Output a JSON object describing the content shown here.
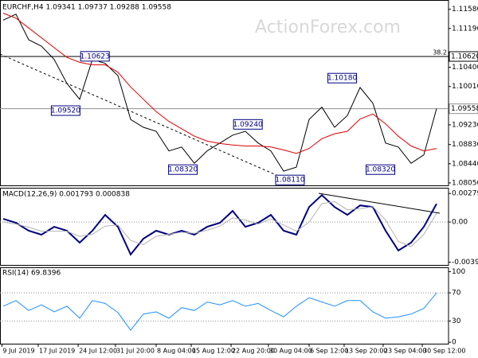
{
  "chart_data": [
    {
      "type": "line",
      "title": "EURCHF,H4  1.09341 1.09737 1.09288 1.09558",
      "watermark": "ActionForex.com",
      "ylim": [
        1.08,
        1.1172
      ],
      "yticks": [
        {
          "value": 1.1158,
          "label": "1.11580"
        },
        {
          "value": 1.1119,
          "label": "1.11190"
        },
        {
          "value": 1.104,
          "label": "1.10400"
        },
        {
          "value": 1.1001,
          "label": "1.10010"
        },
        {
          "value": 1.0923,
          "label": "1.09230"
        },
        {
          "value": 1.0883,
          "label": "1.08830"
        },
        {
          "value": 1.0844,
          "label": "1.08440"
        },
        {
          "value": 1.0805,
          "label": "1.08050"
        }
      ],
      "levels": [
        {
          "value": 1.1062,
          "label": "1.10620",
          "color": "#000000"
        },
        {
          "value": 1.09558,
          "label": "1.09558",
          "color": "#909090"
        }
      ],
      "fib_label": "38.2",
      "annotations": [
        {
          "value": 1.0952,
          "label": "1.09520",
          "x": 4.9
        },
        {
          "value": 1.10623,
          "label": "1.10623",
          "x": 7.2
        },
        {
          "value": 1.0924,
          "label": "1.09240",
          "x": 19.2
        },
        {
          "value": 1.1018,
          "label": "1.10180",
          "x": 26.6
        },
        {
          "value": 1.0832,
          "label": "1.08320",
          "x": 14.1
        },
        {
          "value": 1.0811,
          "label": "1.08110",
          "x": 22.5
        },
        {
          "value": 1.0832,
          "label": "1.08320",
          "x": 29.6
        }
      ],
      "series": [
        {
          "color": "#000000",
          "values": [
            1.1136,
            1.1148,
            1.1096,
            1.1083,
            1.1056,
            1.1007,
            1.0975,
            1.1056,
            1.1048,
            1.1023,
            1.0934,
            1.0918,
            1.091,
            1.087,
            1.0878,
            1.0845,
            1.087,
            1.0886,
            1.0902,
            1.091,
            1.0886,
            1.087,
            1.0829,
            1.0837,
            1.0934,
            1.0959,
            1.0918,
            1.0942,
            1.0999,
            1.0967,
            1.0886,
            1.0878,
            1.0845,
            1.0862,
            1.0956
          ]
        },
        {
          "color": "#e00000",
          "values": [
            1.115,
            1.114,
            1.112,
            1.11,
            1.108,
            1.106,
            1.105,
            1.1045,
            1.1045,
            1.103,
            1.1,
            1.0975,
            1.095,
            1.093,
            1.0915,
            1.09,
            1.089,
            1.0885,
            1.0882,
            1.088,
            1.088,
            1.0878,
            1.0872,
            1.0865,
            1.0875,
            1.0895,
            1.0905,
            1.091,
            1.0935,
            1.0945,
            1.0925,
            1.09,
            1.088,
            1.087,
            1.0875
          ]
        }
      ]
    },
    {
      "type": "line",
      "title": "MACD(12,26,9) 0.001793 0.000838",
      "ylim": [
        -0.0042,
        0.0032
      ],
      "yticks": [
        {
          "value": 0.002793,
          "label": "0.002793"
        },
        {
          "value": 0,
          "label": "0.00"
        },
        {
          "value": -0.003938,
          "label": "-0.003938"
        }
      ],
      "levels": [
        {
          "value": 0,
          "color": "#909090"
        }
      ],
      "series": [
        {
          "color": "#000080",
          "values": [
            0.00031,
            -8e-05,
            -0.00085,
            -0.00124,
            -0.00047,
            -0.00085,
            -0.00202,
            -0.00085,
            0.0007,
            -0.00047,
            -0.00318,
            -0.00163,
            -0.00085,
            -0.00124,
            -0.00085,
            -0.00124,
            -0.00047,
            -8e-05,
            0.00109,
            -0.00047,
            -8e-05,
            0.0007,
            -0.00085,
            -0.00124,
            0.00147,
            0.00264,
            0.00147,
            0.0007,
            0.00163,
            0.00147,
            -0.00085,
            -0.00279,
            -0.00202,
            -0.00047,
            0.00179
          ]
        },
        {
          "color": "#b4b4b4",
          "values": [
            0.0,
            -0.0002,
            -0.0005,
            -0.0009,
            -0.0009,
            -0.0009,
            -0.0014,
            -0.0012,
            -0.0004,
            -0.0003,
            -0.0018,
            -0.0022,
            -0.0014,
            -0.0012,
            -0.001,
            -0.0011,
            -0.0008,
            -0.0004,
            0.0004,
            0.0002,
            -0.0002,
            0.0003,
            -0.0003,
            -0.0009,
            0.0,
            0.0018,
            0.002,
            0.0012,
            0.0013,
            0.0015,
            0.0002,
            -0.0019,
            -0.0024,
            -0.0012,
            0.00084
          ]
        }
      ]
    },
    {
      "type": "line",
      "title": "RSI(14) 69.8396",
      "ylim": [
        -2,
        105
      ],
      "yticks": [
        100,
        70,
        30,
        0
      ],
      "levels": [
        {
          "value": 70,
          "color": "#909090"
        },
        {
          "value": 30,
          "color": "#909090"
        }
      ],
      "series": [
        {
          "color": "#1e90ff",
          "values": [
            51,
            59,
            45,
            53,
            43,
            51,
            34,
            59,
            55,
            42,
            17,
            40,
            43,
            34,
            49,
            45,
            57,
            53,
            59,
            51,
            55,
            45,
            36,
            51,
            63,
            57,
            51,
            59,
            59,
            43,
            34,
            36,
            40,
            48,
            69.84
          ]
        }
      ],
      "xlim": [
        -0.25,
        34.94
      ],
      "xticks": [
        {
          "value": -0.1,
          "label": "9 Jul 2019"
        },
        {
          "value": 2.75,
          "label": "17 Jul 2019"
        },
        {
          "value": 5.88,
          "label": "24 Jul 12:00"
        },
        {
          "value": 8.81,
          "label": "31 Jul 20:00"
        },
        {
          "value": 12,
          "label": "8 Aug 04:00"
        },
        {
          "value": 14.75,
          "label": "15 Aug 12:00"
        },
        {
          "value": 17.88,
          "label": "22 Aug 20:00"
        },
        {
          "value": 20.81,
          "label": "30 Aug 04:00"
        },
        {
          "value": 24,
          "label": "6 Sep 12:00"
        },
        {
          "value": 26.75,
          "label": "13 Sep 20:00"
        },
        {
          "value": 29.81,
          "label": "23 Sep 04:00"
        },
        {
          "value": 32.88,
          "label": "30 Sep 12:00"
        }
      ]
    }
  ]
}
